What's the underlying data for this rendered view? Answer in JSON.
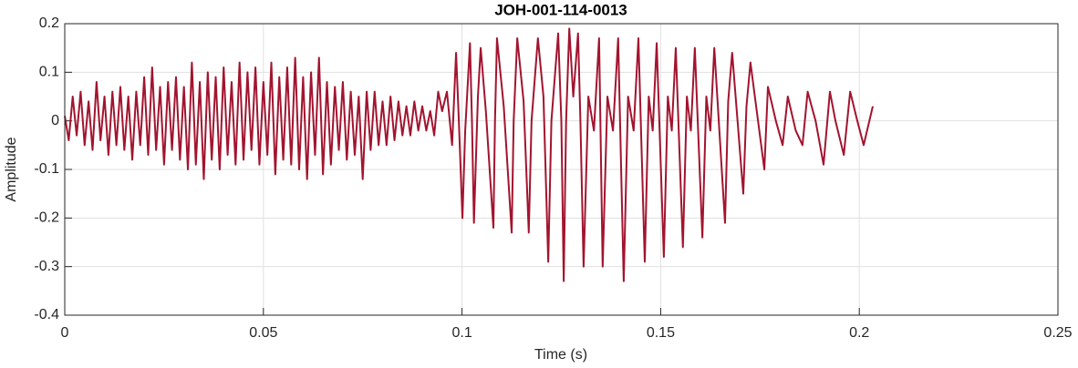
{
  "chart_data": {
    "type": "line",
    "title": "JOH-001-114-0013",
    "xlabel": "Time (s)",
    "ylabel": "Amplitude",
    "color": "#a2142f",
    "grid": true,
    "xlim": [
      0,
      0.25
    ],
    "xticks": [
      0,
      0.05,
      0.1,
      0.15,
      0.2,
      0.25
    ],
    "ylim": [
      -0.4,
      0.2
    ],
    "yticks": [
      -0.4,
      -0.3,
      -0.2,
      -0.1,
      0,
      0.1,
      0.2
    ],
    "x": [
      0,
      0.001,
      0.002,
      0.003,
      0.004,
      0.005,
      0.006,
      0.007,
      0.008,
      0.009,
      0.01,
      0.011,
      0.012,
      0.013,
      0.014,
      0.015,
      0.016,
      0.017,
      0.018,
      0.019,
      0.02,
      0.021,
      0.022,
      0.023,
      0.024,
      0.025,
      0.026,
      0.027,
      0.028,
      0.029,
      0.03,
      0.031,
      0.032,
      0.033,
      0.034,
      0.035,
      0.036,
      0.037,
      0.038,
      0.039,
      0.04,
      0.041,
      0.042,
      0.043,
      0.044,
      0.045,
      0.046,
      0.047,
      0.048,
      0.049,
      0.05,
      0.051,
      0.052,
      0.053,
      0.054,
      0.055,
      0.056,
      0.057,
      0.058,
      0.059,
      0.06,
      0.061,
      0.062,
      0.063,
      0.064,
      0.065,
      0.066,
      0.067,
      0.068,
      0.069,
      0.07,
      0.071,
      0.072,
      0.073,
      0.074,
      0.075,
      0.076,
      0.077,
      0.078,
      0.079,
      0.08,
      0.081,
      0.082,
      0.083,
      0.084,
      0.085,
      0.086,
      0.087,
      0.088,
      0.089,
      0.09,
      0.091,
      0.092,
      0.093,
      0.094,
      0.095,
      0.0962,
      0.0975,
      0.0985,
      0.0992,
      0.1001,
      0.1008,
      0.102,
      0.1025,
      0.103,
      0.104,
      0.1047,
      0.106,
      0.1079,
      0.1083,
      0.1088,
      0.1105,
      0.1125,
      0.113,
      0.1139,
      0.1155,
      0.1168,
      0.1175,
      0.1191,
      0.1205,
      0.1217,
      0.1225,
      0.1242,
      0.125,
      0.1256,
      0.1262,
      0.127,
      0.128,
      0.1292,
      0.1298,
      0.1306,
      0.1318,
      0.1332,
      0.1345,
      0.1354,
      0.1366,
      0.138,
      0.1393,
      0.1407,
      0.1418,
      0.1432,
      0.1444,
      0.146,
      0.147,
      0.148,
      0.149,
      0.1508,
      0.1518,
      0.1528,
      0.1538,
      0.1556,
      0.1566,
      0.1576,
      0.1586,
      0.1605,
      0.1615,
      0.1625,
      0.1635,
      0.1662,
      0.167,
      0.168,
      0.1708,
      0.1716,
      0.1726,
      0.1761,
      0.177,
      0.179,
      0.1807,
      0.182,
      0.184,
      0.1857,
      0.187,
      0.189,
      0.191,
      0.1926,
      0.194,
      0.1961,
      0.1977,
      0.1995,
      0.2011,
      0.2034
    ],
    "values": [
      0.01,
      -0.04,
      0.05,
      -0.03,
      0.06,
      -0.05,
      0.04,
      -0.06,
      0.08,
      -0.04,
      0.05,
      -0.07,
      0.06,
      -0.05,
      0.07,
      -0.06,
      0.05,
      -0.08,
      0.06,
      -0.05,
      0.09,
      -0.07,
      0.11,
      -0.06,
      0.07,
      -0.09,
      0.08,
      -0.06,
      0.09,
      -0.08,
      0.07,
      -0.1,
      0.12,
      -0.09,
      0.08,
      -0.12,
      0.1,
      -0.08,
      0.09,
      -0.1,
      0.11,
      -0.07,
      0.08,
      -0.09,
      0.12,
      -0.08,
      0.1,
      -0.06,
      0.11,
      -0.09,
      0.08,
      -0.07,
      0.12,
      -0.11,
      0.09,
      -0.08,
      0.11,
      -0.09,
      0.13,
      -0.1,
      0.09,
      -0.12,
      0.1,
      -0.07,
      0.13,
      -0.11,
      0.08,
      -0.09,
      0.07,
      -0.06,
      0.08,
      -0.08,
      0.06,
      -0.07,
      0.05,
      -0.12,
      0.06,
      -0.06,
      0.06,
      -0.05,
      0.04,
      -0.05,
      0.05,
      -0.04,
      0.04,
      -0.03,
      0.03,
      -0.03,
      0.04,
      -0.02,
      0.03,
      -0.02,
      0.02,
      -0.03,
      0.06,
      0.02,
      0.06,
      -0.05,
      0.14,
      0,
      -0.2,
      -0.02,
      0.16,
      0,
      -0.21,
      0.05,
      0.15,
      0.02,
      -0.22,
      0,
      0.17,
      0.03,
      -0.23,
      0,
      0.17,
      0.04,
      -0.23,
      0,
      0.17,
      0.05,
      -0.29,
      0,
      0.18,
      0,
      -0.33,
      0,
      0.19,
      0.05,
      0.18,
      0,
      -0.3,
      0.05,
      -0.02,
      0.17,
      -0.3,
      0.05,
      -0.02,
      0.17,
      -0.33,
      0.05,
      -0.02,
      0.17,
      -0.29,
      0.05,
      -0.02,
      0.16,
      -0.28,
      0.05,
      -0.02,
      0.15,
      -0.26,
      0.05,
      -0.02,
      0.15,
      -0.24,
      0.05,
      -0.02,
      0.15,
      -0.21,
      0.04,
      0.14,
      -0.15,
      0.03,
      0.12,
      -0.1,
      0.07,
      0,
      -0.05,
      0.05,
      -0.02,
      -0.05,
      0.06,
      0,
      -0.09,
      0.06,
      0,
      -0.07,
      0.06,
      0,
      -0.05,
      0.03
    ]
  }
}
